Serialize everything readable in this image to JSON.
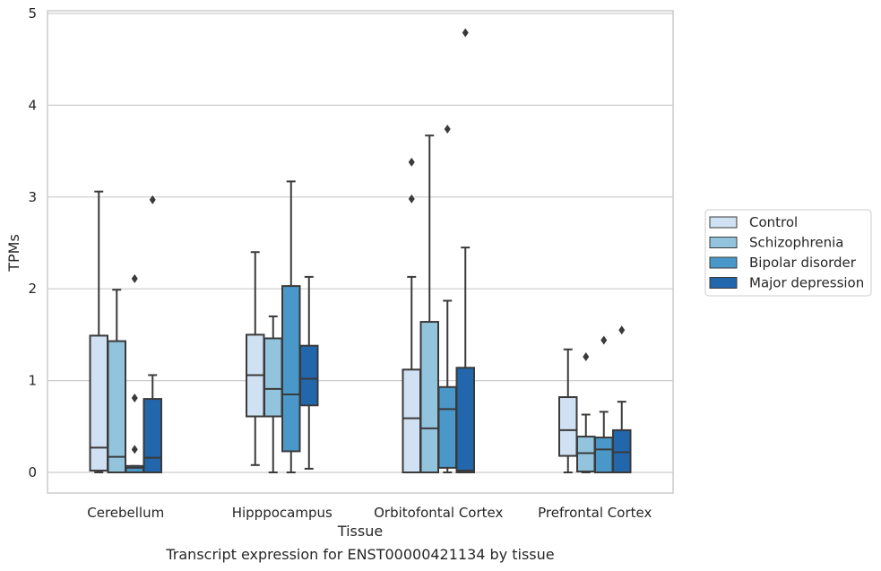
{
  "chart_data": {
    "type": "box",
    "xlabel": "Tissue",
    "ylabel": "TPMs",
    "caption": "Transcript expression for ENST00000421134 by tissue",
    "ylim": [
      -0.22,
      5.05
    ],
    "yticks": [
      0,
      1,
      2,
      3,
      4,
      5
    ],
    "grid": true,
    "legend_position": "right",
    "categories": [
      "Cerebellum",
      "Hipppocampus",
      "Orbitofontal Cortex",
      "Prefrontal Cortex"
    ],
    "series": [
      {
        "name": "Control",
        "color": "#cfe1f2",
        "boxes": [
          {
            "whisker_low": 0.0,
            "q1": 0.02,
            "median": 0.27,
            "q3": 1.49,
            "whisker_high": 3.06,
            "outliers": []
          },
          {
            "whisker_low": 0.08,
            "q1": 0.61,
            "median": 1.06,
            "q3": 1.5,
            "whisker_high": 2.4,
            "outliers": []
          },
          {
            "whisker_low": 0.0,
            "q1": 0.0,
            "median": 0.59,
            "q3": 1.12,
            "whisker_high": 2.13,
            "outliers": [
              2.98,
              3.38
            ]
          },
          {
            "whisker_low": 0.0,
            "q1": 0.18,
            "median": 0.46,
            "q3": 0.82,
            "whisker_high": 1.34,
            "outliers": []
          }
        ]
      },
      {
        "name": "Schizophrenia",
        "color": "#93c4de",
        "boxes": [
          {
            "whisker_low": 0.0,
            "q1": 0.0,
            "median": 0.17,
            "q3": 1.43,
            "whisker_high": 1.99,
            "outliers": []
          },
          {
            "whisker_low": 0.0,
            "q1": 0.61,
            "median": 0.91,
            "q3": 1.46,
            "whisker_high": 1.7,
            "outliers": []
          },
          {
            "whisker_low": 0.0,
            "q1": 0.0,
            "median": 0.48,
            "q3": 1.64,
            "whisker_high": 3.67,
            "outliers": []
          },
          {
            "whisker_low": 0.0,
            "q1": 0.01,
            "median": 0.21,
            "q3": 0.39,
            "whisker_high": 0.63,
            "outliers": [
              1.26
            ]
          }
        ]
      },
      {
        "name": "Bipolar disorder",
        "color": "#4a98c9",
        "boxes": [
          {
            "whisker_low": 0.0,
            "q1": 0.0,
            "median": 0.05,
            "q3": 0.07,
            "whisker_high": 0.07,
            "outliers": [
              0.25,
              0.81,
              2.11
            ]
          },
          {
            "whisker_low": 0.0,
            "q1": 0.23,
            "median": 0.85,
            "q3": 2.03,
            "whisker_high": 3.17,
            "outliers": []
          },
          {
            "whisker_low": 0.0,
            "q1": 0.05,
            "median": 0.69,
            "q3": 0.93,
            "whisker_high": 1.87,
            "outliers": [
              3.74
            ]
          },
          {
            "whisker_low": 0.0,
            "q1": 0.0,
            "median": 0.25,
            "q3": 0.38,
            "whisker_high": 0.66,
            "outliers": [
              1.44
            ]
          }
        ]
      },
      {
        "name": "Major depression",
        "color": "#2266ac",
        "boxes": [
          {
            "whisker_low": 0.0,
            "q1": 0.0,
            "median": 0.16,
            "q3": 0.8,
            "whisker_high": 1.06,
            "outliers": [
              2.97
            ]
          },
          {
            "whisker_low": 0.04,
            "q1": 0.73,
            "median": 1.02,
            "q3": 1.38,
            "whisker_high": 2.13,
            "outliers": []
          },
          {
            "whisker_low": 0.0,
            "q1": 0.0,
            "median": 0.02,
            "q3": 1.14,
            "whisker_high": 2.45,
            "outliers": [
              4.79
            ]
          },
          {
            "whisker_low": 0.0,
            "q1": 0.0,
            "median": 0.22,
            "q3": 0.46,
            "whisker_high": 0.77,
            "outliers": [
              1.55
            ]
          }
        ]
      }
    ]
  }
}
